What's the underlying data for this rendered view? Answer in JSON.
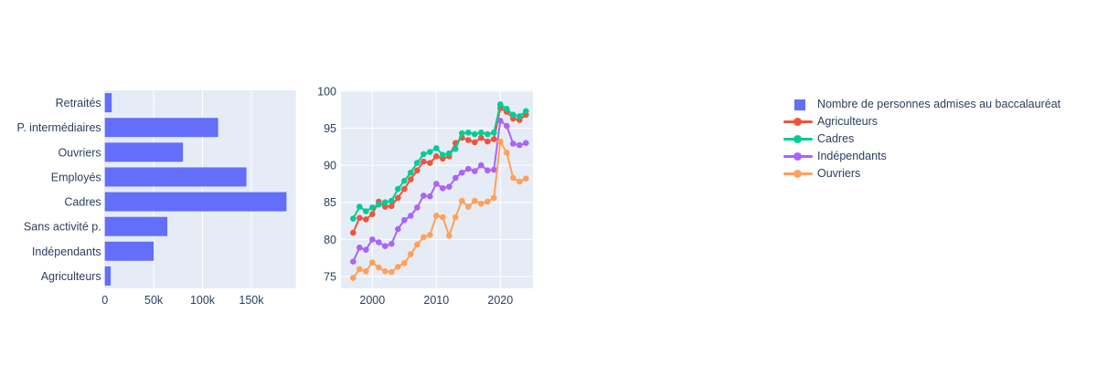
{
  "figure": {
    "background": "#ffffff",
    "plot_background": "#e5ecf6",
    "grid_color": "#ffffff",
    "text_color": "#2a3f5f",
    "accent_blue": "#636efa"
  },
  "chart_data": [
    {
      "id": "bac-admissions-count",
      "type": "bar",
      "orientation": "horizontal",
      "series_name": "Nombre de personnes admises au baccalauréat",
      "color": "#636efa",
      "categories": [
        "Retraités",
        "P. intermédiaires",
        "Ouvriers",
        "Employés",
        "Cadres",
        "Sans activité p.",
        "Indépendants",
        "Agriculteurs"
      ],
      "values": [
        7000,
        116000,
        80000,
        145000,
        186000,
        64000,
        50000,
        6000
      ],
      "x_ticks": [
        {
          "value": 0,
          "label": "0"
        },
        {
          "value": 50000,
          "label": "50k"
        },
        {
          "value": 100000,
          "label": "100k"
        },
        {
          "value": 150000,
          "label": "150k"
        }
      ],
      "xlim": [
        0,
        195000
      ],
      "grid": true,
      "title": "",
      "xlabel": "",
      "ylabel": ""
    },
    {
      "id": "bac-admission-rate-by-category",
      "type": "line",
      "x": [
        1997,
        1998,
        1999,
        2000,
        2001,
        2002,
        2003,
        2004,
        2005,
        2006,
        2007,
        2008,
        2009,
        2010,
        2011,
        2012,
        2013,
        2014,
        2015,
        2016,
        2017,
        2018,
        2019,
        2020,
        2021,
        2022,
        2023,
        2024
      ],
      "series": [
        {
          "name": "Agriculteurs",
          "color": "#ef553b",
          "values": [
            80.9,
            82.9,
            82.7,
            83.4,
            85.1,
            84.4,
            84.5,
            85.6,
            86.8,
            88.1,
            89.3,
            90.5,
            90.3,
            91.2,
            90.9,
            91.2,
            93.0,
            93.7,
            93.4,
            93.1,
            93.7,
            93.2,
            93.5,
            97.7,
            97.2,
            96.3,
            96.1,
            96.8
          ]
        },
        {
          "name": "Cadres",
          "color": "#00cc96",
          "values": [
            82.8,
            84.4,
            83.8,
            84.3,
            84.7,
            85.0,
            85.2,
            86.8,
            87.9,
            89.0,
            90.3,
            91.5,
            91.8,
            92.3,
            91.4,
            91.6,
            92.2,
            94.3,
            94.4,
            94.2,
            94.4,
            94.2,
            94.4,
            98.2,
            97.6,
            96.8,
            96.6,
            97.3
          ]
        },
        {
          "name": "Indépendants",
          "color": "#ab63fa",
          "values": [
            77.0,
            78.9,
            78.6,
            80.0,
            79.6,
            79.1,
            79.4,
            81.4,
            82.6,
            83.2,
            84.3,
            85.9,
            85.8,
            87.5,
            86.9,
            87.1,
            88.3,
            89.0,
            89.5,
            89.2,
            90.0,
            89.3,
            89.4,
            96.0,
            95.3,
            92.9,
            92.7,
            93.0
          ]
        },
        {
          "name": "Ouvriers",
          "color": "#ffa15a",
          "values": [
            74.8,
            76.0,
            75.7,
            76.9,
            76.2,
            75.7,
            75.6,
            76.3,
            76.8,
            78.0,
            79.3,
            80.3,
            80.6,
            83.2,
            83.0,
            80.5,
            83.0,
            85.2,
            84.4,
            85.2,
            84.8,
            85.1,
            85.6,
            93.2,
            91.7,
            88.3,
            87.8,
            88.2
          ]
        }
      ],
      "x_ticks": [
        2000,
        2010,
        2020
      ],
      "y_ticks": [
        75,
        80,
        85,
        90,
        95,
        100
      ],
      "xlim": [
        1995.1,
        2025.1
      ],
      "ylim": [
        73.4,
        100.1
      ],
      "grid": true,
      "markers": true,
      "title": "",
      "xlabel": "",
      "ylabel": ""
    }
  ],
  "legend": {
    "position": "right",
    "items": [
      {
        "label": "Nombre de personnes admises au baccalauréat",
        "marker": "square",
        "color": "#636efa"
      },
      {
        "label": "Agriculteurs",
        "marker": "line-dot",
        "color": "#ef553b"
      },
      {
        "label": "Cadres",
        "marker": "line-dot",
        "color": "#00cc96"
      },
      {
        "label": "Indépendants",
        "marker": "line-dot",
        "color": "#ab63fa"
      },
      {
        "label": "Ouvriers",
        "marker": "line-dot",
        "color": "#ffa15a"
      }
    ]
  }
}
